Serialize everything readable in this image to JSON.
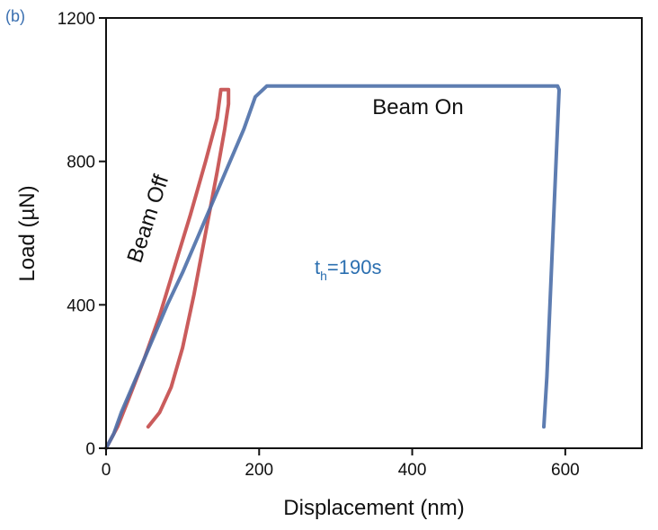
{
  "chart_data": {
    "type": "line",
    "panel_label": "(b)",
    "xlabel": "Displacement (nm)",
    "ylabel": "Load (µN)",
    "xlim": [
      0,
      700
    ],
    "ylim": [
      0,
      1200
    ],
    "x_ticks": [
      0,
      200,
      400,
      600
    ],
    "y_ticks": [
      0,
      400,
      800,
      1200
    ],
    "grid": false,
    "series": [
      {
        "name": "Beam Off",
        "color": "#c44a4a",
        "x": [
          0,
          15,
          30,
          50,
          70,
          90,
          110,
          130,
          145,
          150,
          160,
          160,
          155,
          145,
          130,
          115,
          100,
          85,
          70,
          55
        ],
        "y": [
          0,
          60,
          140,
          250,
          370,
          510,
          650,
          800,
          920,
          1000,
          1000,
          960,
          890,
          770,
          600,
          430,
          280,
          170,
          100,
          60
        ]
      },
      {
        "name": "Beam On",
        "color": "#4d6fa8",
        "x": [
          0,
          10,
          20,
          40,
          60,
          80,
          100,
          120,
          140,
          160,
          180,
          195,
          210,
          250,
          350,
          450,
          550,
          590,
          592,
          588,
          584,
          580,
          576,
          572
        ],
        "y": [
          0,
          40,
          100,
          200,
          300,
          400,
          490,
          590,
          690,
          790,
          890,
          980,
          1010,
          1010,
          1010,
          1010,
          1010,
          1010,
          1000,
          800,
          600,
          400,
          200,
          60
        ]
      }
    ],
    "annotations": {
      "beam_off": "Beam Off",
      "beam_on": "Beam On",
      "th_main": "t",
      "th_sub": "h",
      "th_rest": "=190s",
      "th_color": "#2b6fb0"
    }
  }
}
